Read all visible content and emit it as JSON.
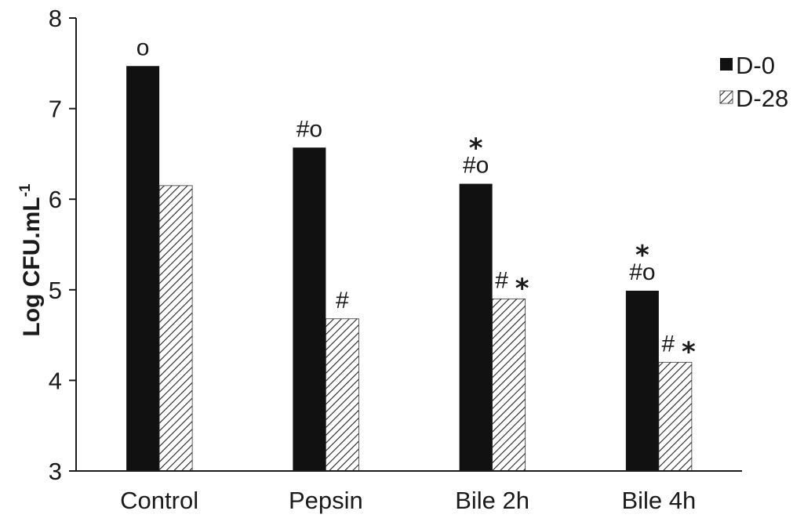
{
  "colors": {
    "d0": "#111111",
    "d28_hatch": "#222222",
    "axis": "#1a1a1a"
  },
  "chart_data": {
    "type": "bar",
    "title": "",
    "xlabel": "",
    "ylabel": "Log CFU.mL",
    "ylabel_superscript": "-1",
    "ylim": [
      3,
      8
    ],
    "yticks": [
      "3",
      "4",
      "5",
      "6",
      "7",
      "8"
    ],
    "grid": false,
    "legend_position": "top-right",
    "categories": [
      "Control",
      "Pepsin",
      "Bile 2h",
      "Bile 4h"
    ],
    "series": [
      {
        "name": "D-0",
        "values": [
          7.47,
          6.57,
          6.17,
          4.99
        ],
        "pattern": "solid"
      },
      {
        "name": "D-28",
        "values": [
          6.15,
          4.68,
          4.9,
          4.2
        ],
        "pattern": "hatch"
      }
    ],
    "annotations": [
      {
        "category": 0,
        "series": 0,
        "text": "o",
        "star": false
      },
      {
        "category": 1,
        "series": 0,
        "text": "#o",
        "star": false
      },
      {
        "category": 1,
        "series": 1,
        "text": "#",
        "star": false
      },
      {
        "category": 2,
        "series": 0,
        "text": "#o",
        "star": true
      },
      {
        "category": 2,
        "series": 1,
        "text": "#",
        "star": true
      },
      {
        "category": 3,
        "series": 0,
        "text": "#o",
        "star": true
      },
      {
        "category": 3,
        "series": 1,
        "text": "#",
        "star": true
      }
    ]
  }
}
